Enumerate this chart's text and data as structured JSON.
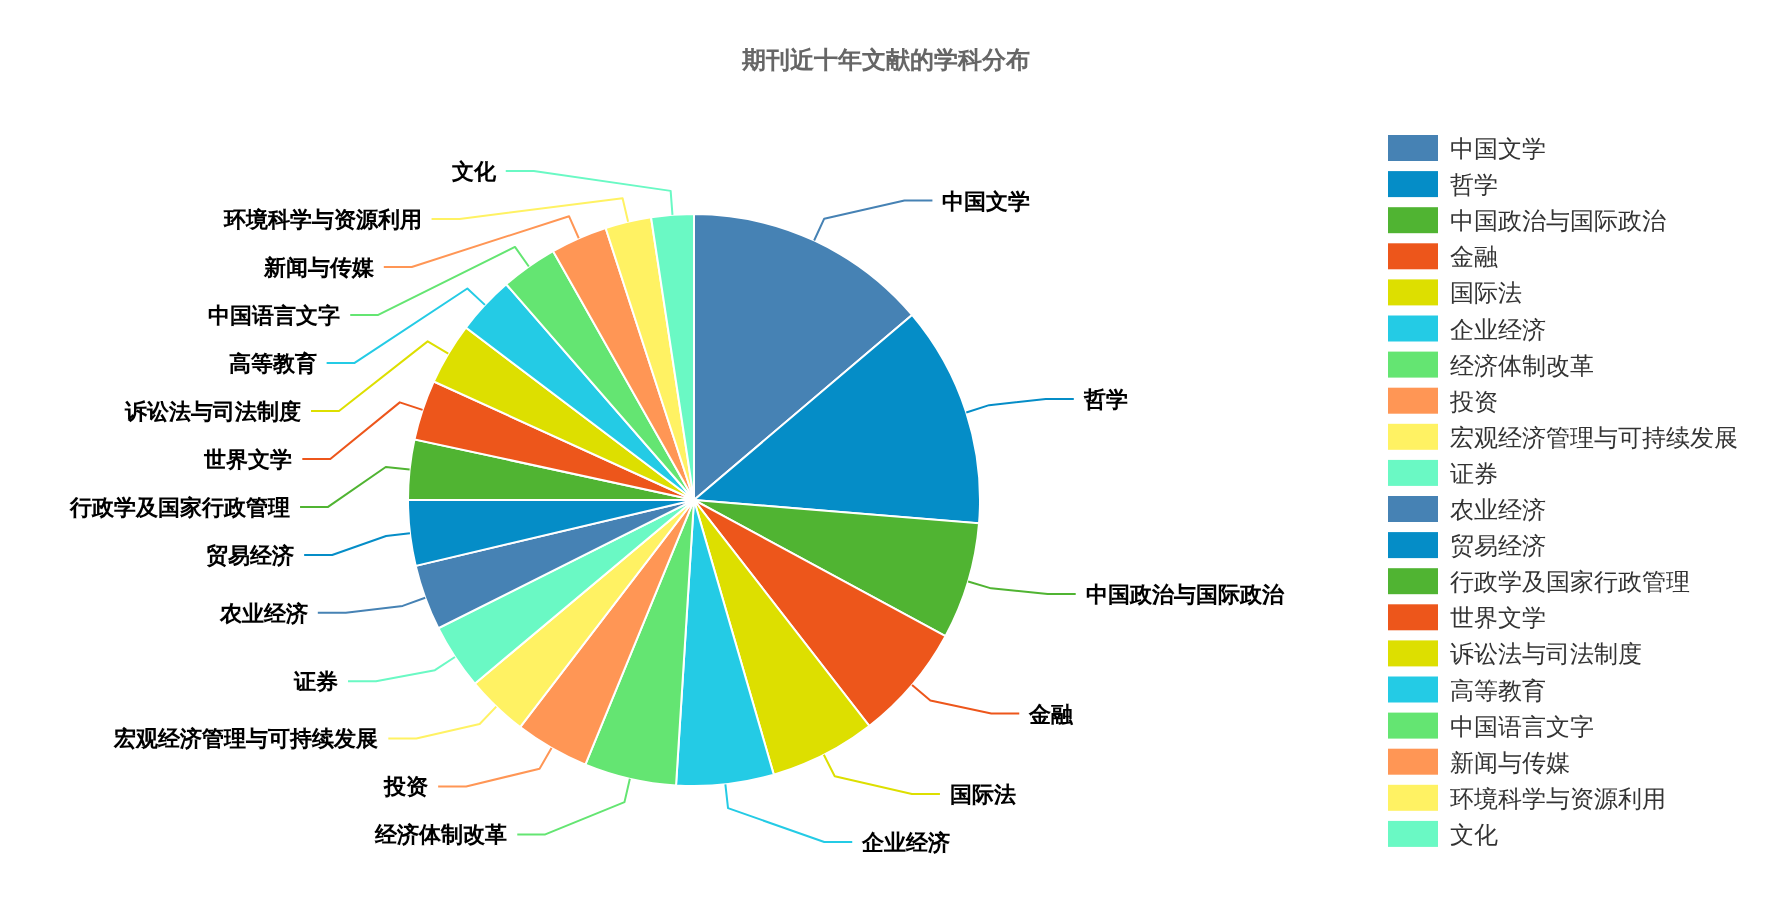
{
  "chart_data": {
    "type": "pie",
    "title": "期刊近十年文献的学科分布",
    "categories": [
      "中国文学",
      "哲学",
      "中国政治与国际政治",
      "金融",
      "国际法",
      "企业经济",
      "经济体制改革",
      "投资",
      "宏观经济管理与可持续发展",
      "证券",
      "农业经济",
      "贸易经济",
      "行政学及国家行政管理",
      "世界文学",
      "诉讼法与司法制度",
      "高等教育",
      "中国语言文字",
      "新闻与传媒",
      "环境科学与资源利用",
      "文化"
    ],
    "values": [
      13.8,
      12.5,
      6.6,
      6.6,
      6.0,
      5.5,
      5.2,
      4.2,
      3.5,
      3.7,
      3.7,
      3.7,
      3.4,
      3.4,
      3.5,
      3.3,
      3.2,
      3.2,
      2.6,
      2.4
    ],
    "colors": [
      "#4682b4",
      "#058dc7",
      "#50b432",
      "#ed561b",
      "#dddf00",
      "#24cbe5",
      "#64e572",
      "#ff9655",
      "#fff263",
      "#6af9c4",
      "#4682b4",
      "#058dc7",
      "#50b432",
      "#ed561b",
      "#dddf00",
      "#24cbe5",
      "#64e572",
      "#ff9655",
      "#fff263",
      "#6af9c4"
    ],
    "legend": "right"
  }
}
